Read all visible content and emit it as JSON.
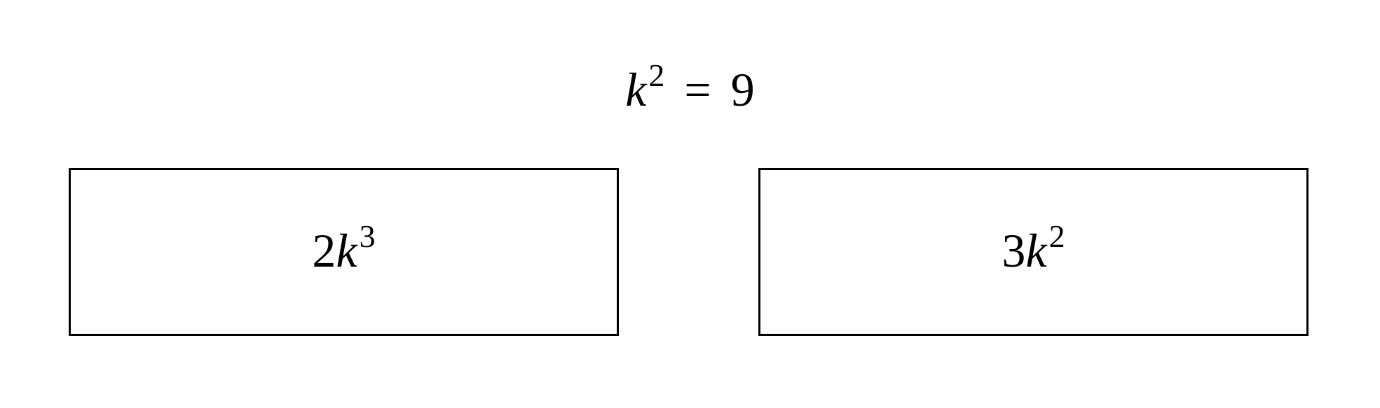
{
  "equation": {
    "variable": "k",
    "exponent": "2",
    "operator": "=",
    "value": "9"
  },
  "options": [
    {
      "coefficient": "2",
      "variable": "k",
      "exponent": "3"
    },
    {
      "coefficient": "3",
      "variable": "k",
      "exponent": "2"
    }
  ]
}
